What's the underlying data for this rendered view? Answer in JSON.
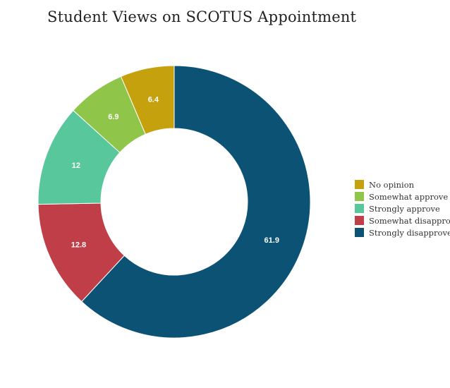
{
  "chart_data": {
    "type": "pie",
    "donut": true,
    "title": "Student Views on SCOTUS Appointment",
    "legend_position": "right",
    "slices": [
      {
        "label": "Strongly disapprove",
        "value": 61.9,
        "color": "#0b5274"
      },
      {
        "label": "Somewhat disapprove",
        "value": 12.8,
        "color": "#c03e47"
      },
      {
        "label": "Strongly approve",
        "value": 12,
        "color": "#58c79b"
      },
      {
        "label": "Somewhat approve",
        "value": 6.9,
        "color": "#8fc649"
      },
      {
        "label": "No opinion",
        "value": 6.4,
        "color": "#c4a10d"
      }
    ],
    "legend_order": [
      "No opinion",
      "Somewhat approve",
      "Strongly approve",
      "Somewhat disapprove",
      "Strongly disapprove"
    ]
  }
}
